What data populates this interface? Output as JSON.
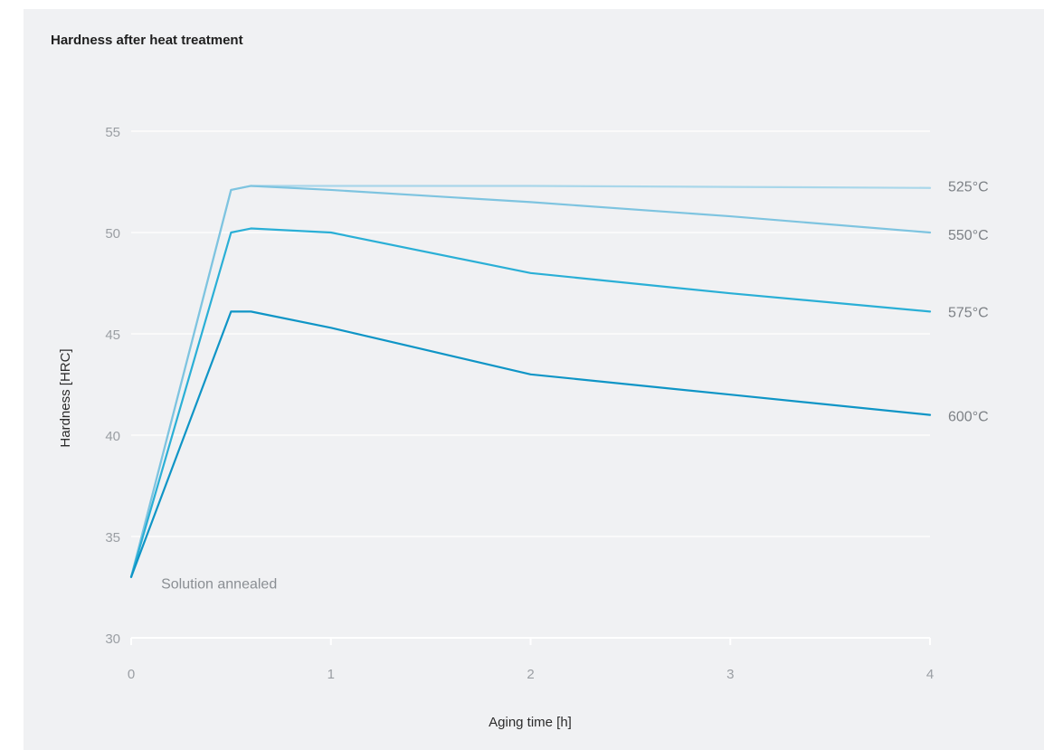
{
  "chart_data": {
    "type": "line",
    "title": "Hardness after heat treatment",
    "xlabel": "Aging time [h]",
    "ylabel": "Hardness [HRC]",
    "xlim": [
      0,
      4
    ],
    "ylim": [
      30,
      55
    ],
    "x_ticks": [
      0,
      1,
      2,
      3,
      4
    ],
    "y_ticks": [
      30,
      35,
      40,
      45,
      50,
      55
    ],
    "x_tick_labels": [
      "0",
      "1",
      "2",
      "3",
      "4"
    ],
    "y_tick_labels": [
      "30",
      "35",
      "40",
      "45",
      "50",
      "55"
    ],
    "grid": "horizontal",
    "annotation": {
      "text": "Solution annealed",
      "x": 0.15,
      "y": 32.7
    },
    "series": [
      {
        "name": "525°C",
        "color": "#a9d7ea",
        "points": [
          [
            0,
            33
          ],
          [
            0.5,
            52.1
          ],
          [
            0.6,
            52.3
          ],
          [
            1,
            52.3
          ],
          [
            2,
            52.3
          ],
          [
            3,
            52.25
          ],
          [
            4,
            52.2
          ]
        ]
      },
      {
        "name": "550°C",
        "color": "#7ec4e0",
        "points": [
          [
            0,
            33
          ],
          [
            0.5,
            52.1
          ],
          [
            0.6,
            52.3
          ],
          [
            1,
            52.1
          ],
          [
            2,
            51.5
          ],
          [
            3,
            50.8
          ],
          [
            4,
            50
          ]
        ]
      },
      {
        "name": "575°C",
        "color": "#2aafd6",
        "points": [
          [
            0,
            33
          ],
          [
            0.5,
            50
          ],
          [
            0.6,
            50.2
          ],
          [
            1,
            50
          ],
          [
            2,
            48
          ],
          [
            3,
            47
          ],
          [
            4,
            46.1
          ]
        ]
      },
      {
        "name": "600°C",
        "color": "#0f95c6",
        "points": [
          [
            0,
            33
          ],
          [
            0.5,
            46.1
          ],
          [
            0.6,
            46.1
          ],
          [
            1,
            45.3
          ],
          [
            2,
            43
          ],
          [
            3,
            42
          ],
          [
            4,
            41
          ]
        ]
      }
    ]
  }
}
